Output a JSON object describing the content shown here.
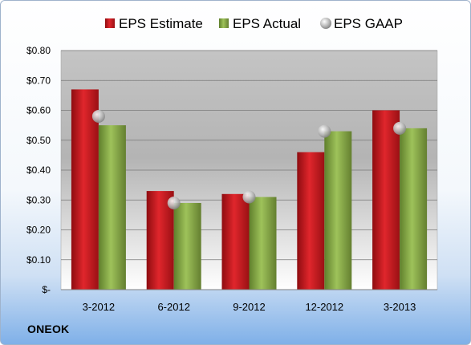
{
  "company_name": "ONEOK",
  "chart_data": {
    "type": "bar",
    "categories": [
      "3-2012",
      "6-2012",
      "9-2012",
      "12-2012",
      "3-2013"
    ],
    "series": [
      {
        "name": "EPS Estimate",
        "kind": "bar",
        "color": "#c8181e",
        "values": [
          0.67,
          0.33,
          0.32,
          0.46,
          0.6
        ]
      },
      {
        "name": "EPS Actual",
        "kind": "bar",
        "color": "#8cb04a",
        "values": [
          0.55,
          0.29,
          0.31,
          0.53,
          0.54
        ]
      },
      {
        "name": "EPS GAAP",
        "kind": "marker",
        "color": "#b8b8b8",
        "values": [
          0.58,
          0.29,
          0.31,
          0.53,
          0.54
        ]
      }
    ],
    "y_ticks": [
      "$-",
      "$0.10",
      "$0.20",
      "$0.30",
      "$0.40",
      "$0.50",
      "$0.60",
      "$0.70",
      "$0.80"
    ],
    "ylim": [
      0,
      0.8
    ],
    "grid": true,
    "legend_position": "top"
  }
}
